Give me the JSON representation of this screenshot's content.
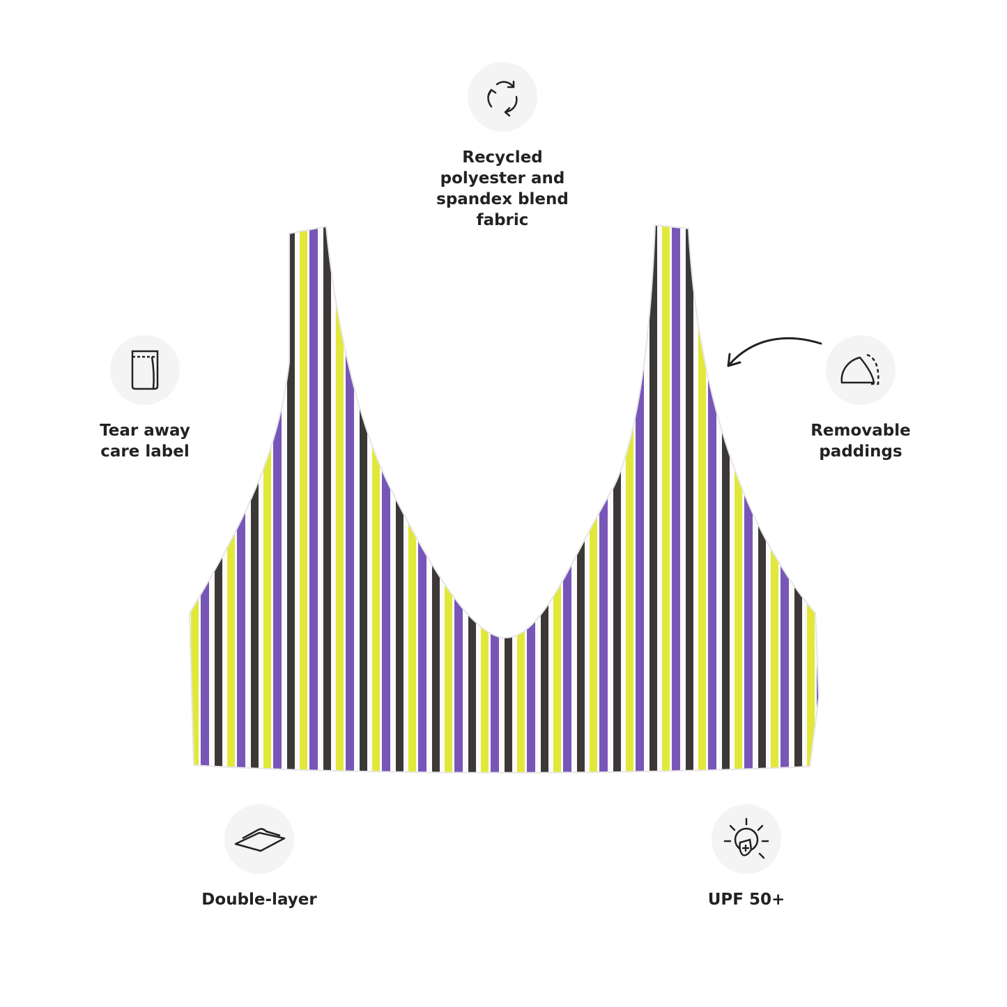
{
  "product": {
    "stripe_colors": [
      "#7856b8",
      "#3c3838",
      "#e2e83a",
      "#ffffff"
    ]
  },
  "features": [
    {
      "label": "Recycled\npolyester and\nspandex blend\nfabric",
      "icon": "recycle-icon"
    },
    {
      "label": "Tear away\ncare label",
      "icon": "care-label-icon"
    },
    {
      "label": "Removable\npaddings",
      "icon": "padding-icon"
    },
    {
      "label": "Double-layer",
      "icon": "layers-icon"
    },
    {
      "label": "UPF 50+",
      "icon": "sun-shield-icon"
    }
  ]
}
